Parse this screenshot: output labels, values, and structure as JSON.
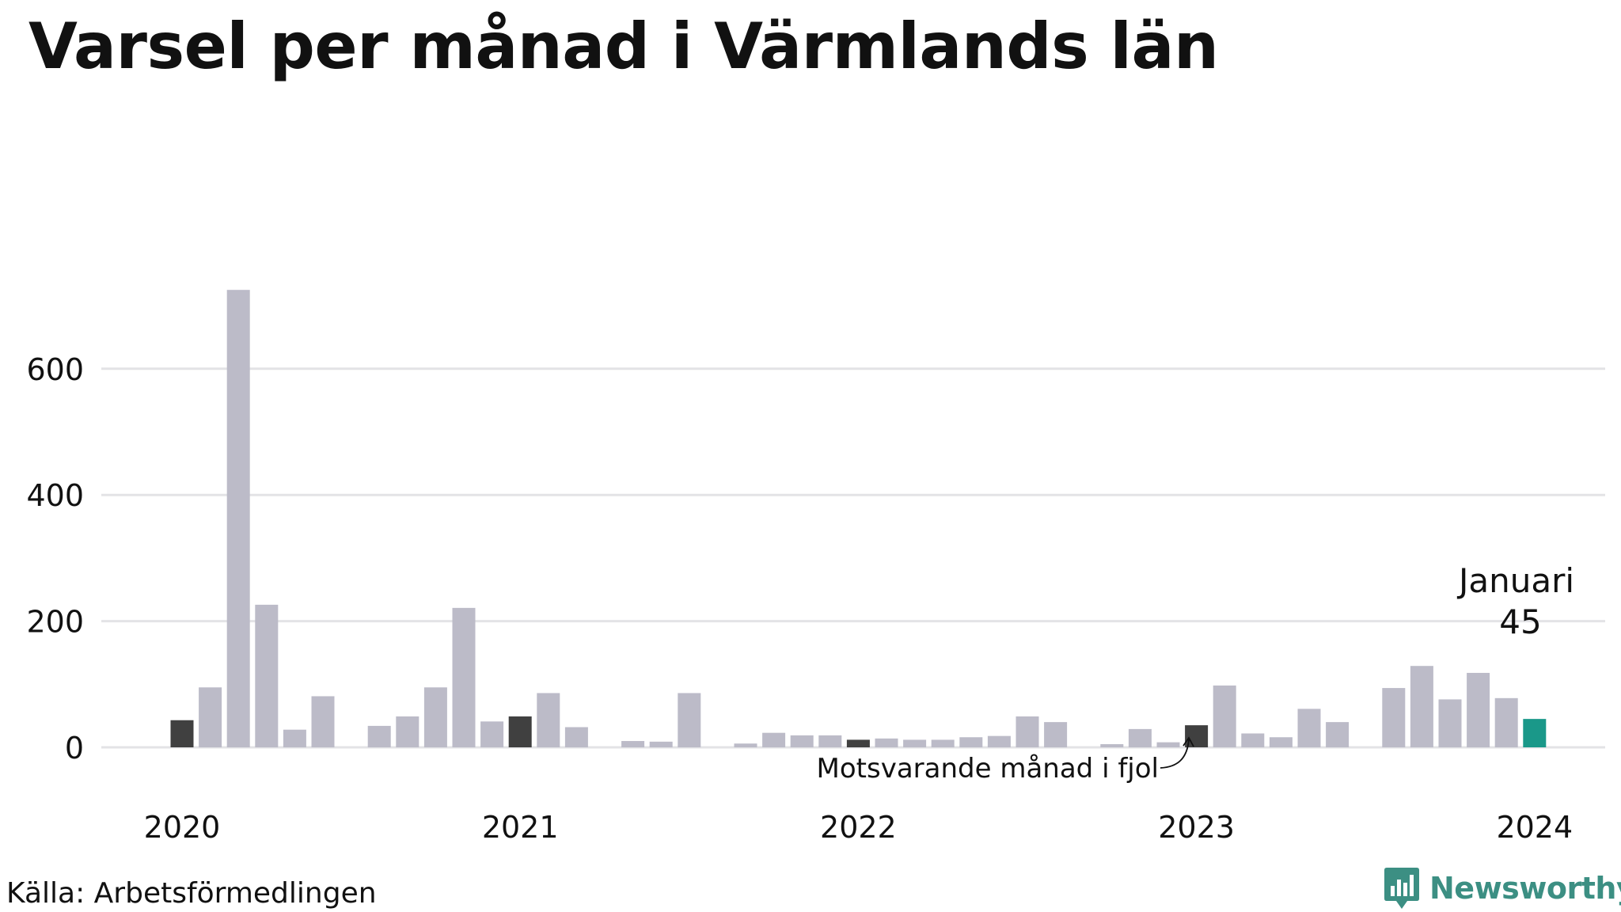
{
  "title": "Varsel per månad i Värmlands län",
  "source": "Källa: Arbetsförmedlingen",
  "brand": {
    "name": "Newsworthy",
    "icon": "newsworthy-logo-icon",
    "color": "#3c8f83"
  },
  "colors": {
    "default_bar": "#bcbbc8",
    "same_month_bar": "#404040",
    "current_bar": "#1a9889",
    "grid": "#e3e3e6",
    "text": "#111111"
  },
  "chart_data": {
    "type": "bar",
    "ylim": [
      0,
      725
    ],
    "y_ticks": [
      0,
      200,
      400,
      600
    ],
    "grid": true,
    "x_ticks": [
      "2020",
      "2021",
      "2022",
      "2023",
      "2024"
    ],
    "annotations": {
      "current_label": "Januari",
      "current_value": "45",
      "same_month_note": "Motsvarande månad i fjol"
    },
    "bars": [
      {
        "year": 2020,
        "month": 1,
        "value": 43,
        "kind": "same_month"
      },
      {
        "year": 2020,
        "month": 2,
        "value": 95,
        "kind": "default"
      },
      {
        "year": 2020,
        "month": 3,
        "value": 725,
        "kind": "default"
      },
      {
        "year": 2020,
        "month": 4,
        "value": 226,
        "kind": "default"
      },
      {
        "year": 2020,
        "month": 5,
        "value": 28,
        "kind": "default"
      },
      {
        "year": 2020,
        "month": 6,
        "value": 81,
        "kind": "default"
      },
      {
        "year": 2020,
        "month": 7,
        "value": 0,
        "kind": "default"
      },
      {
        "year": 2020,
        "month": 8,
        "value": 34,
        "kind": "default"
      },
      {
        "year": 2020,
        "month": 9,
        "value": 49,
        "kind": "default"
      },
      {
        "year": 2020,
        "month": 10,
        "value": 95,
        "kind": "default"
      },
      {
        "year": 2020,
        "month": 11,
        "value": 221,
        "kind": "default"
      },
      {
        "year": 2020,
        "month": 12,
        "value": 41,
        "kind": "default"
      },
      {
        "year": 2021,
        "month": 1,
        "value": 49,
        "kind": "same_month"
      },
      {
        "year": 2021,
        "month": 2,
        "value": 86,
        "kind": "default"
      },
      {
        "year": 2021,
        "month": 3,
        "value": 32,
        "kind": "default"
      },
      {
        "year": 2021,
        "month": 4,
        "value": 0,
        "kind": "default"
      },
      {
        "year": 2021,
        "month": 5,
        "value": 10,
        "kind": "default"
      },
      {
        "year": 2021,
        "month": 6,
        "value": 9,
        "kind": "default"
      },
      {
        "year": 2021,
        "month": 7,
        "value": 86,
        "kind": "default"
      },
      {
        "year": 2021,
        "month": 8,
        "value": 0,
        "kind": "default"
      },
      {
        "year": 2021,
        "month": 9,
        "value": 6,
        "kind": "default"
      },
      {
        "year": 2021,
        "month": 10,
        "value": 23,
        "kind": "default"
      },
      {
        "year": 2021,
        "month": 11,
        "value": 19,
        "kind": "default"
      },
      {
        "year": 2021,
        "month": 12,
        "value": 19,
        "kind": "default"
      },
      {
        "year": 2022,
        "month": 1,
        "value": 12,
        "kind": "same_month"
      },
      {
        "year": 2022,
        "month": 2,
        "value": 14,
        "kind": "default"
      },
      {
        "year": 2022,
        "month": 3,
        "value": 12,
        "kind": "default"
      },
      {
        "year": 2022,
        "month": 4,
        "value": 12,
        "kind": "default"
      },
      {
        "year": 2022,
        "month": 5,
        "value": 16,
        "kind": "default"
      },
      {
        "year": 2022,
        "month": 6,
        "value": 18,
        "kind": "default"
      },
      {
        "year": 2022,
        "month": 7,
        "value": 49,
        "kind": "default"
      },
      {
        "year": 2022,
        "month": 8,
        "value": 40,
        "kind": "default"
      },
      {
        "year": 2022,
        "month": 9,
        "value": 0,
        "kind": "default"
      },
      {
        "year": 2022,
        "month": 10,
        "value": 5,
        "kind": "default"
      },
      {
        "year": 2022,
        "month": 11,
        "value": 29,
        "kind": "default"
      },
      {
        "year": 2022,
        "month": 12,
        "value": 8,
        "kind": "default"
      },
      {
        "year": 2023,
        "month": 1,
        "value": 35,
        "kind": "same_month"
      },
      {
        "year": 2023,
        "month": 2,
        "value": 98,
        "kind": "default"
      },
      {
        "year": 2023,
        "month": 3,
        "value": 22,
        "kind": "default"
      },
      {
        "year": 2023,
        "month": 4,
        "value": 16,
        "kind": "default"
      },
      {
        "year": 2023,
        "month": 5,
        "value": 61,
        "kind": "default"
      },
      {
        "year": 2023,
        "month": 6,
        "value": 40,
        "kind": "default"
      },
      {
        "year": 2023,
        "month": 7,
        "value": 0,
        "kind": "default"
      },
      {
        "year": 2023,
        "month": 8,
        "value": 94,
        "kind": "default"
      },
      {
        "year": 2023,
        "month": 9,
        "value": 129,
        "kind": "default"
      },
      {
        "year": 2023,
        "month": 10,
        "value": 76,
        "kind": "default"
      },
      {
        "year": 2023,
        "month": 11,
        "value": 118,
        "kind": "default"
      },
      {
        "year": 2023,
        "month": 12,
        "value": 78,
        "kind": "default"
      },
      {
        "year": 2024,
        "month": 1,
        "value": 45,
        "kind": "current"
      }
    ]
  }
}
